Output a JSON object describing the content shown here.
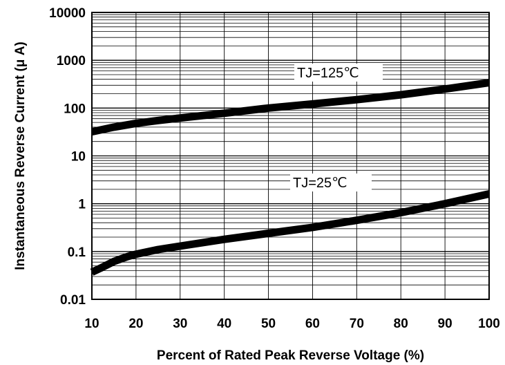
{
  "chart_data": {
    "type": "line",
    "title": "",
    "xlabel": "Percent of Rated Peak Reverse Voltage (%)",
    "ylabel": "Instantaneous Reverse Current (μ A)",
    "xlim": [
      10,
      100
    ],
    "ylim": [
      0.01,
      10000
    ],
    "yscale": "log",
    "grid": true,
    "x_ticks": [
      "10",
      "20",
      "30",
      "40",
      "50",
      "60",
      "70",
      "80",
      "90",
      "100"
    ],
    "y_ticks": [
      "0.01",
      "0.1",
      "1",
      "10",
      "100",
      "1000",
      "10000"
    ],
    "series": [
      {
        "name": "TJ=125℃",
        "x": [
          10,
          15,
          20,
          25,
          30,
          40,
          50,
          60,
          70,
          80,
          90,
          100
        ],
        "y": [
          32,
          40,
          48,
          55,
          62,
          78,
          100,
          122,
          150,
          190,
          250,
          340
        ]
      },
      {
        "name": "TJ=25℃",
        "x": [
          10,
          12,
          15,
          18,
          20,
          25,
          30,
          40,
          50,
          60,
          70,
          80,
          90,
          100
        ],
        "y": [
          0.037,
          0.045,
          0.062,
          0.078,
          0.088,
          0.11,
          0.13,
          0.18,
          0.24,
          0.32,
          0.45,
          0.65,
          1.0,
          1.6
        ]
      }
    ]
  }
}
